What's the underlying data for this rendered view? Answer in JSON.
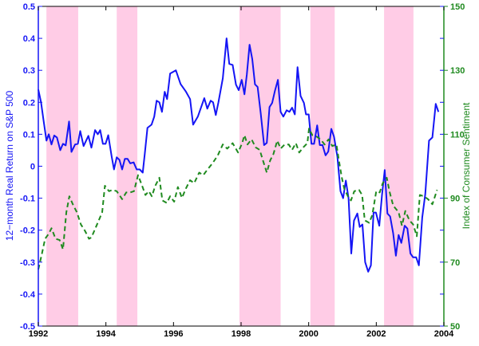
{
  "chart_data": {
    "type": "line",
    "title": "",
    "xlabel": "",
    "ylabel": "12−month Real Return on S&P 500",
    "ylabel_right": "Index of Consumer Sentiment",
    "xlim": [
      1992,
      2004
    ],
    "ylim": [
      -0.5,
      0.5
    ],
    "ylim_right": [
      50,
      150
    ],
    "x_ticks": [
      "1992",
      "1994",
      "1996",
      "1998",
      "2000",
      "2002",
      "2004"
    ],
    "y_ticks": [
      "0.5",
      "0.4",
      "0.3",
      "0.2",
      "0.1",
      "0",
      "-0.1",
      "-0.2",
      "-0.3",
      "-0.4",
      "-0.5"
    ],
    "y_ticks_right": [
      "150",
      "130",
      "110",
      "90",
      "70",
      "50"
    ],
    "grid": false,
    "colors": {
      "returns": "#1515f5",
      "sentiment": "#1f8a1f",
      "shading": "#ffcce6"
    },
    "shaded_periods": [
      [
        1992.24,
        1993.18
      ],
      [
        1994.32,
        1994.93
      ],
      [
        1997.95,
        1999.17
      ],
      [
        2000.05,
        2000.77
      ],
      [
        2002.23,
        2003.1
      ]
    ],
    "series": [
      {
        "axis": "left",
        "style": "solid",
        "points": [
          [
            1992.0,
            0.24
          ],
          [
            1992.08,
            0.2
          ],
          [
            1992.15,
            0.146
          ],
          [
            1992.24,
            0.08
          ],
          [
            1992.31,
            0.1
          ],
          [
            1992.39,
            0.068
          ],
          [
            1992.47,
            0.096
          ],
          [
            1992.55,
            0.09
          ],
          [
            1992.65,
            0.05
          ],
          [
            1992.73,
            0.07
          ],
          [
            1992.81,
            0.065
          ],
          [
            1992.91,
            0.14
          ],
          [
            1992.98,
            0.045
          ],
          [
            1993.09,
            0.068
          ],
          [
            1993.17,
            0.07
          ],
          [
            1993.24,
            0.11
          ],
          [
            1993.34,
            0.063
          ],
          [
            1993.48,
            0.095
          ],
          [
            1993.57,
            0.058
          ],
          [
            1993.68,
            0.113
          ],
          [
            1993.76,
            0.1
          ],
          [
            1993.83,
            0.113
          ],
          [
            1993.91,
            0.07
          ],
          [
            1993.99,
            0.07
          ],
          [
            1994.07,
            0.097
          ],
          [
            1994.17,
            0.03
          ],
          [
            1994.24,
            -0.01
          ],
          [
            1994.32,
            0.028
          ],
          [
            1994.4,
            0.02
          ],
          [
            1994.48,
            -0.01
          ],
          [
            1994.56,
            0.023
          ],
          [
            1994.64,
            0.023
          ],
          [
            1994.72,
            0.009
          ],
          [
            1994.82,
            0.012
          ],
          [
            1994.91,
            -0.01
          ],
          [
            1995.0,
            -0.01
          ],
          [
            1995.09,
            -0.02
          ],
          [
            1995.15,
            0.04
          ],
          [
            1995.23,
            0.12
          ],
          [
            1995.35,
            0.13
          ],
          [
            1995.43,
            0.155
          ],
          [
            1995.5,
            0.205
          ],
          [
            1995.58,
            0.2
          ],
          [
            1995.66,
            0.17
          ],
          [
            1995.74,
            0.233
          ],
          [
            1995.81,
            0.21
          ],
          [
            1995.9,
            0.29
          ],
          [
            1996.07,
            0.3
          ],
          [
            1996.21,
            0.257
          ],
          [
            1996.37,
            0.233
          ],
          [
            1996.49,
            0.21
          ],
          [
            1996.58,
            0.13
          ],
          [
            1996.72,
            0.155
          ],
          [
            1996.91,
            0.213
          ],
          [
            1997.0,
            0.18
          ],
          [
            1997.1,
            0.205
          ],
          [
            1997.17,
            0.2
          ],
          [
            1997.25,
            0.16
          ],
          [
            1997.33,
            0.2
          ],
          [
            1997.46,
            0.275
          ],
          [
            1997.57,
            0.4
          ],
          [
            1997.65,
            0.32
          ],
          [
            1997.75,
            0.317
          ],
          [
            1997.85,
            0.255
          ],
          [
            1997.93,
            0.238
          ],
          [
            1998.02,
            0.27
          ],
          [
            1998.1,
            0.225
          ],
          [
            1998.17,
            0.287
          ],
          [
            1998.25,
            0.38
          ],
          [
            1998.33,
            0.335
          ],
          [
            1998.41,
            0.256
          ],
          [
            1998.49,
            0.248
          ],
          [
            1998.58,
            0.165
          ],
          [
            1998.68,
            0.066
          ],
          [
            1998.76,
            0.073
          ],
          [
            1998.84,
            0.185
          ],
          [
            1998.92,
            0.198
          ],
          [
            1999.0,
            0.235
          ],
          [
            1999.09,
            0.27
          ],
          [
            1999.17,
            0.17
          ],
          [
            1999.25,
            0.155
          ],
          [
            1999.35,
            0.175
          ],
          [
            1999.43,
            0.17
          ],
          [
            1999.51,
            0.183
          ],
          [
            1999.59,
            0.162
          ],
          [
            1999.67,
            0.31
          ],
          [
            1999.76,
            0.22
          ],
          [
            1999.86,
            0.198
          ],
          [
            1999.92,
            0.162
          ],
          [
            2000.0,
            0.162
          ],
          [
            2000.08,
            0.07
          ],
          [
            2000.16,
            0.07
          ],
          [
            2000.25,
            0.128
          ],
          [
            2000.33,
            0.066
          ],
          [
            2000.41,
            0.066
          ],
          [
            2000.5,
            0.034
          ],
          [
            2000.58,
            0.046
          ],
          [
            2000.67,
            0.117
          ],
          [
            2000.75,
            0.092
          ],
          [
            2000.85,
            0.03
          ],
          [
            2000.94,
            -0.078
          ],
          [
            2001.02,
            -0.1
          ],
          [
            2001.1,
            -0.045
          ],
          [
            2001.18,
            -0.1
          ],
          [
            2001.26,
            -0.273
          ],
          [
            2001.34,
            -0.17
          ],
          [
            2001.44,
            -0.148
          ],
          [
            2001.51,
            -0.19
          ],
          [
            2001.59,
            -0.182
          ],
          [
            2001.67,
            -0.3
          ],
          [
            2001.76,
            -0.33
          ],
          [
            2001.84,
            -0.31
          ],
          [
            2001.92,
            -0.145
          ],
          [
            2001.99,
            -0.145
          ],
          [
            2002.09,
            -0.186
          ],
          [
            2002.17,
            -0.09
          ],
          [
            2002.25,
            -0.012
          ],
          [
            2002.33,
            -0.148
          ],
          [
            2002.41,
            -0.157
          ],
          [
            2002.5,
            -0.21
          ],
          [
            2002.58,
            -0.28
          ],
          [
            2002.66,
            -0.215
          ],
          [
            2002.74,
            -0.24
          ],
          [
            2002.84,
            -0.186
          ],
          [
            2002.92,
            -0.195
          ],
          [
            2003.01,
            -0.273
          ],
          [
            2003.09,
            -0.285
          ],
          [
            2003.18,
            -0.285
          ],
          [
            2003.26,
            -0.31
          ],
          [
            2003.36,
            -0.16
          ],
          [
            2003.45,
            -0.087
          ],
          [
            2003.56,
            0.08
          ],
          [
            2003.66,
            0.09
          ],
          [
            2003.76,
            0.195
          ],
          [
            2003.84,
            0.17
          ]
        ]
      },
      {
        "axis": "right",
        "style": "dashed",
        "points": [
          [
            1992.0,
            67.7
          ],
          [
            1992.1,
            72.3
          ],
          [
            1992.2,
            77.3
          ],
          [
            1992.31,
            78.9
          ],
          [
            1992.39,
            80.6
          ],
          [
            1992.51,
            77.3
          ],
          [
            1992.63,
            76.9
          ],
          [
            1992.73,
            74
          ],
          [
            1992.83,
            85.6
          ],
          [
            1992.92,
            90.6
          ],
          [
            1993.02,
            88.1
          ],
          [
            1993.14,
            85.6
          ],
          [
            1993.26,
            81.8
          ],
          [
            1993.38,
            79.8
          ],
          [
            1993.5,
            77.3
          ],
          [
            1993.57,
            77.7
          ],
          [
            1993.69,
            80.6
          ],
          [
            1993.79,
            83.1
          ],
          [
            1993.89,
            85.6
          ],
          [
            1993.97,
            93.9
          ],
          [
            1994.09,
            92.2
          ],
          [
            1994.2,
            92.6
          ],
          [
            1994.32,
            92.2
          ],
          [
            1994.48,
            89.7
          ],
          [
            1994.6,
            91.8
          ],
          [
            1994.72,
            91.8
          ],
          [
            1994.83,
            92.2
          ],
          [
            1994.95,
            97.2
          ],
          [
            1995.07,
            93.9
          ],
          [
            1995.17,
            91
          ],
          [
            1995.27,
            92.2
          ],
          [
            1995.36,
            90.6
          ],
          [
            1995.46,
            93.9
          ],
          [
            1995.58,
            96.4
          ],
          [
            1995.67,
            89.3
          ],
          [
            1995.8,
            88.5
          ],
          [
            1995.9,
            90.6
          ],
          [
            1996.02,
            88.9
          ],
          [
            1996.13,
            93.5
          ],
          [
            1996.25,
            90.1
          ],
          [
            1996.37,
            93.1
          ],
          [
            1996.49,
            95.6
          ],
          [
            1996.61,
            94.7
          ],
          [
            1996.76,
            98
          ],
          [
            1996.88,
            97.2
          ],
          [
            1997.0,
            98.9
          ],
          [
            1997.16,
            101
          ],
          [
            1997.31,
            103.4
          ],
          [
            1997.46,
            106.8
          ],
          [
            1997.59,
            105.5
          ],
          [
            1997.75,
            107.2
          ],
          [
            1997.91,
            104.3
          ],
          [
            1998.03,
            107.2
          ],
          [
            1998.1,
            109.7
          ],
          [
            1998.19,
            106.8
          ],
          [
            1998.31,
            108.4
          ],
          [
            1998.43,
            105.9
          ],
          [
            1998.55,
            105.1
          ],
          [
            1998.66,
            101.4
          ],
          [
            1998.76,
            98
          ],
          [
            1998.86,
            101.8
          ],
          [
            1998.96,
            103.9
          ],
          [
            1999.07,
            108
          ],
          [
            1999.17,
            105.5
          ],
          [
            1999.29,
            106.8
          ],
          [
            1999.41,
            106.8
          ],
          [
            1999.51,
            105.1
          ],
          [
            1999.62,
            107.2
          ],
          [
            1999.72,
            104.3
          ],
          [
            1999.84,
            105.9
          ],
          [
            1999.96,
            107.2
          ],
          [
            2000.01,
            111.8
          ],
          [
            2000.11,
            109.7
          ],
          [
            2000.23,
            109.3
          ],
          [
            2000.35,
            108.4
          ],
          [
            2000.47,
            106.8
          ],
          [
            2000.59,
            108.4
          ],
          [
            2000.7,
            106.3
          ],
          [
            2000.82,
            106.8
          ],
          [
            2000.9,
            101.4
          ],
          [
            2000.98,
            96.4
          ],
          [
            2001.05,
            93.1
          ],
          [
            2001.16,
            90.6
          ],
          [
            2001.25,
            89.3
          ],
          [
            2001.35,
            92.2
          ],
          [
            2001.49,
            92.6
          ],
          [
            2001.58,
            91
          ],
          [
            2001.66,
            83.1
          ],
          [
            2001.79,
            82.3
          ],
          [
            2001.88,
            84.7
          ],
          [
            2002.0,
            92.2
          ],
          [
            2002.1,
            91.8
          ],
          [
            2002.19,
            94.7
          ],
          [
            2002.31,
            96.4
          ],
          [
            2002.39,
            92.2
          ],
          [
            2002.5,
            87.7
          ],
          [
            2002.66,
            85.6
          ],
          [
            2002.76,
            81.4
          ],
          [
            2002.86,
            86
          ],
          [
            2002.98,
            83.1
          ],
          [
            2003.09,
            81.8
          ],
          [
            2003.2,
            78.1
          ],
          [
            2003.29,
            91
          ],
          [
            2003.41,
            90.6
          ],
          [
            2003.53,
            89.7
          ],
          [
            2003.66,
            88.1
          ],
          [
            2003.8,
            92.6
          ]
        ]
      }
    ]
  }
}
